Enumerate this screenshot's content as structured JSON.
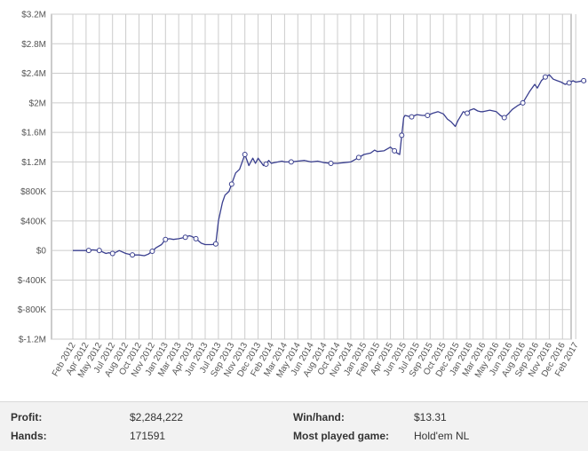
{
  "chart_data": {
    "type": "line",
    "y_ticks": [
      "$3.2M",
      "$2.8M",
      "$2.4M",
      "$2M",
      "$1.6M",
      "$1.2M",
      "$800K",
      "$400K",
      "$0",
      "$-400K",
      "$-800K",
      "$-1.2M"
    ],
    "ylim": [
      -1200000,
      3200000
    ],
    "x_ticks": [
      "Feb 2012",
      "Apr 2012",
      "May 2012",
      "Jul 2012",
      "Aug 2012",
      "Oct 2012",
      "Nov 2012",
      "Jan 2013",
      "Mar 2013",
      "Apr 2013",
      "Jun 2013",
      "Jul 2013",
      "Sep 2013",
      "Nov 2013",
      "Dec 2013",
      "Feb 2014",
      "Mar 2014",
      "May 2014",
      "Jun 2014",
      "Aug 2014",
      "Oct 2014",
      "Nov 2014",
      "Jan 2015",
      "Feb 2015",
      "Apr 2015",
      "Jun 2015",
      "Jul 2015",
      "Sep 2015",
      "Oct 2015",
      "Dec 2015",
      "Jan 2016",
      "Mar 2016",
      "May 2016",
      "Jun 2016",
      "Aug 2016",
      "Sep 2016",
      "Nov 2016",
      "Dec 2016",
      "Feb 2017"
    ],
    "grid": true,
    "line_color": "#3a3f8f",
    "series": [
      {
        "x": [
          0,
          1.0,
          1.2,
          1.5,
          2.0,
          2.5,
          2.7,
          3.0,
          3.3,
          3.5,
          4.0,
          4.5,
          5.0,
          5.4,
          5.7,
          6.0,
          6.3,
          6.7,
          7.0,
          7.3,
          7.6,
          8.0,
          8.5,
          8.8,
          9.0,
          9.3,
          9.7,
          10.0,
          10.5,
          10.8,
          11.0,
          11.3,
          11.5,
          11.8,
          12.0,
          12.3,
          12.6,
          13.0,
          13.3,
          13.6,
          13.8,
          14.0,
          14.2,
          14.4,
          14.6,
          14.8,
          15.0,
          15.2,
          15.5,
          15.8,
          16.0,
          16.5,
          17.0,
          17.5,
          18.0,
          18.5,
          19.0,
          19.5,
          20.0,
          20.5,
          21.0,
          21.3,
          21.6,
          22.0,
          22.5,
          22.8,
          23.0,
          23.5,
          24.0,
          24.3,
          24.5,
          24.7,
          24.85,
          25.0,
          25.1,
          25.3,
          25.6,
          26.0,
          26.4,
          26.8,
          27.2,
          27.6,
          28.0,
          28.3,
          28.6,
          28.9,
          29.1,
          29.3,
          29.5,
          29.8,
          30.0,
          30.3,
          30.6,
          30.8,
          31.0,
          31.5,
          32.0,
          32.3,
          32.6,
          32.9,
          33.2,
          33.6,
          34.0,
          34.5,
          34.9,
          35.1,
          35.4,
          35.7,
          36.0,
          36.3,
          36.6,
          36.9,
          37.2,
          37.5,
          37.8,
          38.0,
          38.3,
          38.6,
          38.8
        ],
        "y": [
          0,
          0,
          0,
          10000,
          0,
          -40000,
          -30000,
          -40000,
          -20000,
          0,
          -40000,
          -60000,
          -60000,
          -70000,
          -50000,
          -10000,
          40000,
          80000,
          150000,
          160000,
          150000,
          160000,
          180000,
          200000,
          190000,
          160000,
          100000,
          80000,
          80000,
          90000,
          400000,
          650000,
          750000,
          800000,
          900000,
          1050000,
          1100000,
          1300000,
          1150000,
          1250000,
          1180000,
          1250000,
          1200000,
          1150000,
          1170000,
          1220000,
          1180000,
          1190000,
          1200000,
          1210000,
          1200000,
          1200000,
          1210000,
          1220000,
          1200000,
          1210000,
          1190000,
          1180000,
          1180000,
          1190000,
          1200000,
          1230000,
          1260000,
          1300000,
          1320000,
          1360000,
          1340000,
          1350000,
          1400000,
          1350000,
          1320000,
          1300000,
          1560000,
          1800000,
          1830000,
          1820000,
          1810000,
          1840000,
          1830000,
          1830000,
          1860000,
          1880000,
          1850000,
          1780000,
          1740000,
          1680000,
          1760000,
          1820000,
          1880000,
          1860000,
          1900000,
          1920000,
          1890000,
          1880000,
          1880000,
          1900000,
          1880000,
          1830000,
          1800000,
          1850000,
          1910000,
          1960000,
          2000000,
          2150000,
          2250000,
          2200000,
          2300000,
          2350000,
          2380000,
          2320000,
          2300000,
          2280000,
          2250000,
          2270000,
          2300000,
          2280000,
          2290000,
          2300000,
          2284222
        ],
        "markers": [
          2,
          4,
          7,
          11,
          15,
          18,
          22,
          25,
          29,
          34,
          37,
          44,
          51,
          57,
          62,
          69,
          72,
          76,
          79,
          89,
          98,
          102,
          107,
          113,
          117
        ]
      }
    ]
  },
  "stats": {
    "profit_label": "Profit:",
    "profit_value": "$2,284,222",
    "hands_label": "Hands:",
    "hands_value": "171591",
    "win_label": "Win/hand:",
    "win_value": "$13.31",
    "game_label": "Most played game:",
    "game_value": "Hold'em NL"
  }
}
